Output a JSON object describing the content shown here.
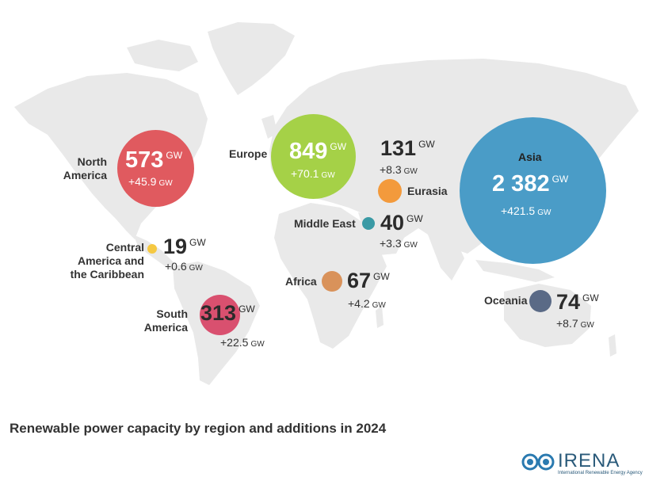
{
  "title": "Renewable power capacity by region and additions in 2024",
  "unit": "GW",
  "colors": {
    "north_america": "#e05a5f",
    "europe": "#a5d147",
    "asia": "#4a9cc7",
    "eurasia": "#f39a3c",
    "middle_east": "#3a9aa5",
    "africa": "#d9925a",
    "oceania": "#5a6a86",
    "central_america": "#f5c842",
    "south_america": "#d9506f",
    "land": "#e9e9e9"
  },
  "regions": {
    "north_america": {
      "name": "North America",
      "capacity": "573",
      "addition": "+45.9"
    },
    "europe": {
      "name": "Europe",
      "capacity": "849",
      "addition": "+70.1"
    },
    "eurasia": {
      "name": "Eurasia",
      "capacity": "131",
      "addition": "+8.3"
    },
    "asia": {
      "name": "Asia",
      "capacity": "2 382",
      "addition": "+421.5"
    },
    "middle_east": {
      "name": "Middle East",
      "capacity": "40",
      "addition": "+3.3"
    },
    "central_america": {
      "name": "Central America and the Caribbean",
      "capacity": "19",
      "addition": "+0.6"
    },
    "africa": {
      "name": "Africa",
      "capacity": "67",
      "addition": "+4.2"
    },
    "south_america": {
      "name": "South America",
      "capacity": "313",
      "addition": "+22.5"
    },
    "oceania": {
      "name": "Oceania",
      "capacity": "74",
      "addition": "+8.7"
    }
  },
  "chart_data": {
    "type": "bubble-map",
    "title": "Renewable power capacity by region and additions in 2024",
    "unit": "GW",
    "series": [
      {
        "region": "North America",
        "capacity": 573,
        "addition": 45.9
      },
      {
        "region": "Europe",
        "capacity": 849,
        "addition": 70.1
      },
      {
        "region": "Eurasia",
        "capacity": 131,
        "addition": 8.3
      },
      {
        "region": "Asia",
        "capacity": 2382,
        "addition": 421.5
      },
      {
        "region": "Middle East",
        "capacity": 40,
        "addition": 3.3
      },
      {
        "region": "Central America and the Caribbean",
        "capacity": 19,
        "addition": 0.6
      },
      {
        "region": "Africa",
        "capacity": 67,
        "addition": 4.2
      },
      {
        "region": "South America",
        "capacity": 313,
        "addition": 22.5
      },
      {
        "region": "Oceania",
        "capacity": 74,
        "addition": 8.7
      }
    ]
  },
  "logo": {
    "name": "IRENA",
    "subtitle": "International Renewable Energy Agency"
  }
}
